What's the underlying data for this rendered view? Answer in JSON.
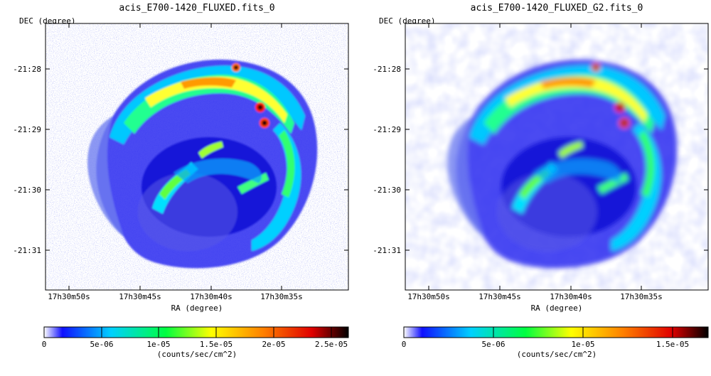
{
  "panels": [
    {
      "title": "acis_E700-1420_FLUXED.fits_0",
      "ylabel": "DEC (degree)",
      "xlabel": "RA (degree)",
      "yticks": [
        "-21:28",
        "-21:29",
        "-21:30",
        "-21:31"
      ],
      "xticks": [
        "17h30m50s",
        "17h30m45s",
        "17h30m40s",
        "17h30m35s"
      ],
      "smoothed": false,
      "colorbar": {
        "ticks": [
          "0",
          "5e-06",
          "1e-05",
          "1.5e-05",
          "2e-05",
          "2.5e-05"
        ],
        "unit": "(counts/sec/cm^2)"
      }
    },
    {
      "title": "acis_E700-1420_FLUXED_G2.fits_0",
      "ylabel": "DEC (degree)",
      "xlabel": "RA (degree)",
      "yticks": [
        "-21:28",
        "-21:29",
        "-21:30",
        "-21:31"
      ],
      "xticks": [
        "17h30m50s",
        "17h30m45s",
        "17h30m40s",
        "17h30m35s"
      ],
      "smoothed": true,
      "colorbar": {
        "ticks": [
          "0",
          "5e-06",
          "1e-05",
          "1.5e-05"
        ],
        "unit": "(counts/sec/cm^2)"
      }
    }
  ],
  "colormap": [
    "#ffffff",
    "#0000ff",
    "#00d0ff",
    "#00ff60",
    "#ffff00",
    "#ff8000",
    "#e00000",
    "#000000"
  ]
}
